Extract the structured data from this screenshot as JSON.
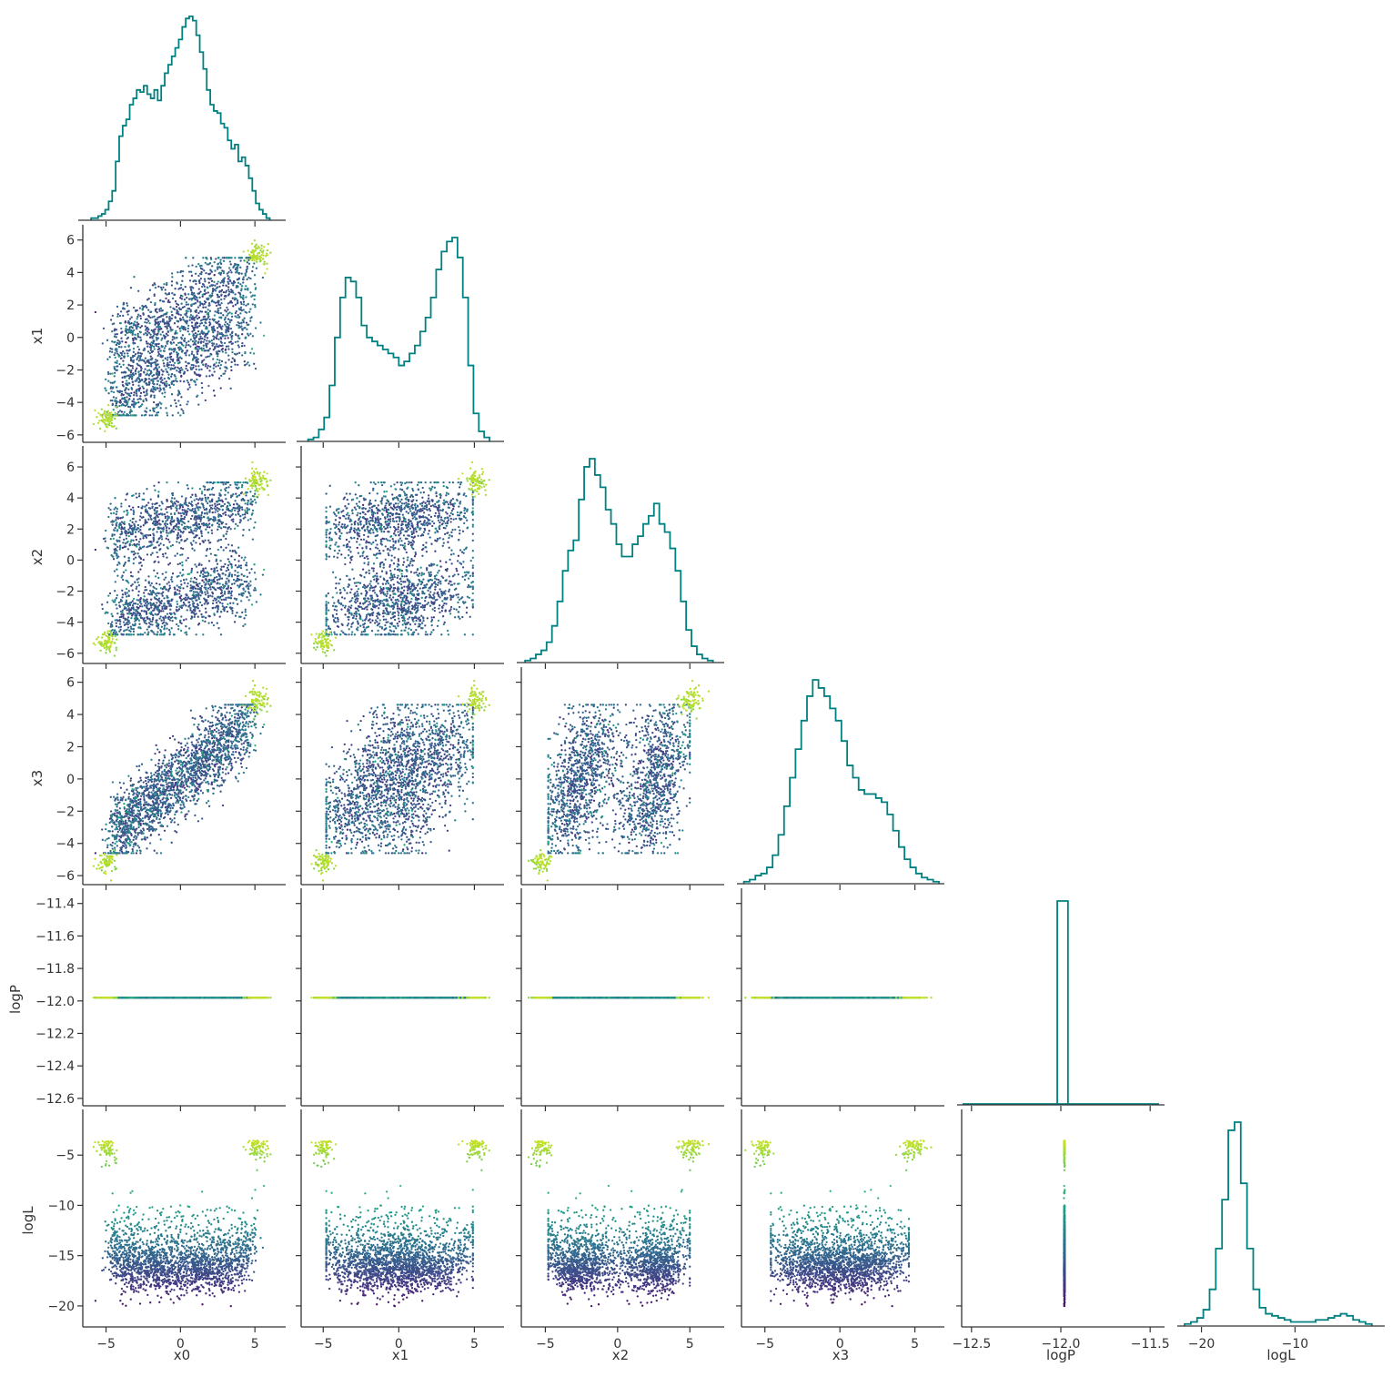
{
  "chart_data": {
    "type": "scatter",
    "kind": "corner plot (pairplot, lower triangle) with step histograms on diagonal",
    "variables": [
      "x0",
      "x1",
      "x2",
      "x3",
      "logP",
      "logL"
    ],
    "colormap": "viridis",
    "color_variable": "logL",
    "histogram_color": "#008080",
    "axes": {
      "x0": {
        "ticks": [
          -5,
          0,
          5
        ],
        "tick_labels": [
          "−5",
          "0",
          "5"
        ],
        "range": [
          -6.5,
          6.7
        ]
      },
      "x1": {
        "ticks": [
          -6,
          -4,
          -2,
          0,
          2,
          4,
          6
        ],
        "tick_labels": [
          "−6",
          "−4",
          "−2",
          "0",
          "2",
          "4",
          "6"
        ],
        "range": [
          -6.4,
          6.6
        ],
        "x_ticks": [
          -5,
          0,
          5
        ],
        "x_tick_labels": [
          "−5",
          "0",
          "5"
        ]
      },
      "x2": {
        "ticks": [
          -6,
          -4,
          -2,
          0,
          2,
          4,
          6
        ],
        "tick_labels": [
          "−6",
          "−4",
          "−2",
          "0",
          "2",
          "4",
          "6"
        ],
        "range": [
          -6.6,
          7.0
        ],
        "x_ticks": [
          -5,
          0,
          5
        ],
        "x_tick_labels": [
          "−5",
          "0",
          "5"
        ]
      },
      "x3": {
        "ticks": [
          -6,
          -4,
          -2,
          0,
          2,
          4,
          6
        ],
        "tick_labels": [
          "−6",
          "−4",
          "−2",
          "0",
          "2",
          "4",
          "6"
        ],
        "range": [
          -6.5,
          6.6
        ],
        "x_ticks": [
          -5,
          0,
          5
        ],
        "x_tick_labels": [
          "−5",
          "0",
          "5"
        ]
      },
      "logP": {
        "ticks": [
          -12.6,
          -12.4,
          -12.2,
          -12.0,
          -11.8,
          -11.6,
          -11.4
        ],
        "tick_labels": [
          "−12.6",
          "−12.4",
          "−12.2",
          "−12.0",
          "−11.8",
          "−11.6",
          "−11.4"
        ],
        "range": [
          -12.64,
          -11.34
        ],
        "x_ticks": [
          -12.5,
          -12.0,
          -11.5
        ],
        "x_tick_labels": [
          "−12.5",
          "−12.0",
          "−11.5"
        ],
        "x_range": [
          -12.55,
          -11.45
        ],
        "constant_value": -11.98
      },
      "logL": {
        "ticks": [
          -20,
          -15,
          -10,
          -5
        ],
        "tick_labels": [
          "−20",
          "−15",
          "−10",
          "−5"
        ],
        "range": [
          -22,
          -1
        ],
        "x_ticks": [
          -20,
          -10
        ],
        "x_tick_labels": [
          "−20",
          "−10"
        ],
        "x_range": [
          -22,
          -1
        ]
      }
    },
    "histograms": {
      "x0": {
        "edges": [
          -6,
          6
        ],
        "counts": [
          1,
          1,
          2,
          3,
          5,
          9,
          14,
          28,
          40,
          45,
          48,
          55,
          58,
          62,
          61,
          64,
          60,
          58,
          62,
          57,
          64,
          70,
          74,
          78,
          82,
          86,
          92,
          96,
          97,
          95,
          88,
          80,
          72,
          62,
          55,
          52,
          51,
          46,
          44,
          38,
          34,
          36,
          28,
          30,
          26,
          20,
          14,
          8,
          5,
          3,
          1
        ]
      },
      "x1": {
        "edges": [
          -6,
          6
        ],
        "counts": [
          1,
          2,
          6,
          12,
          28,
          52,
          72,
          82,
          80,
          72,
          58,
          52,
          50,
          48,
          46,
          44,
          42,
          38,
          40,
          44,
          48,
          55,
          62,
          72,
          86,
          95,
          100,
          102,
          92,
          72,
          38,
          14,
          5,
          2
        ]
      },
      "x2": {
        "edges": [
          -6.4,
          6.6
        ],
        "counts": [
          1,
          2,
          4,
          6,
          10,
          18,
          30,
          45,
          55,
          60,
          80,
          96,
          100,
          92,
          86,
          75,
          68,
          58,
          52,
          52,
          58,
          62,
          68,
          72,
          78,
          68,
          64,
          56,
          45,
          30,
          16,
          8,
          4,
          2,
          1
        ]
      },
      "x3": {
        "edges": [
          -6.4,
          6.6
        ],
        "counts": [
          1,
          2,
          4,
          5,
          8,
          14,
          24,
          38,
          52,
          66,
          80,
          92,
          100,
          96,
          92,
          86,
          80,
          70,
          58,
          52,
          46,
          44,
          44,
          42,
          40,
          34,
          26,
          18,
          12,
          8,
          5,
          3,
          2,
          1
        ]
      },
      "logP": {
        "edges": [
          -12.02,
          -11.96
        ],
        "counts": [
          100
        ]
      },
      "logL": {
        "edges": [
          -21.8,
          -1.8
        ],
        "counts": [
          1,
          2,
          4,
          8,
          18,
          38,
          62,
          96,
          100,
          70,
          38,
          18,
          9,
          6,
          5,
          4,
          3,
          2,
          2,
          2,
          2,
          3,
          3,
          4,
          5,
          6,
          5,
          3,
          2,
          1
        ]
      }
    }
  },
  "x_labels": [
    "x0",
    "x1",
    "x2",
    "x3",
    "logP",
    "logL"
  ],
  "y_labels": [
    "x1",
    "x2",
    "x3",
    "logP",
    "logL"
  ]
}
